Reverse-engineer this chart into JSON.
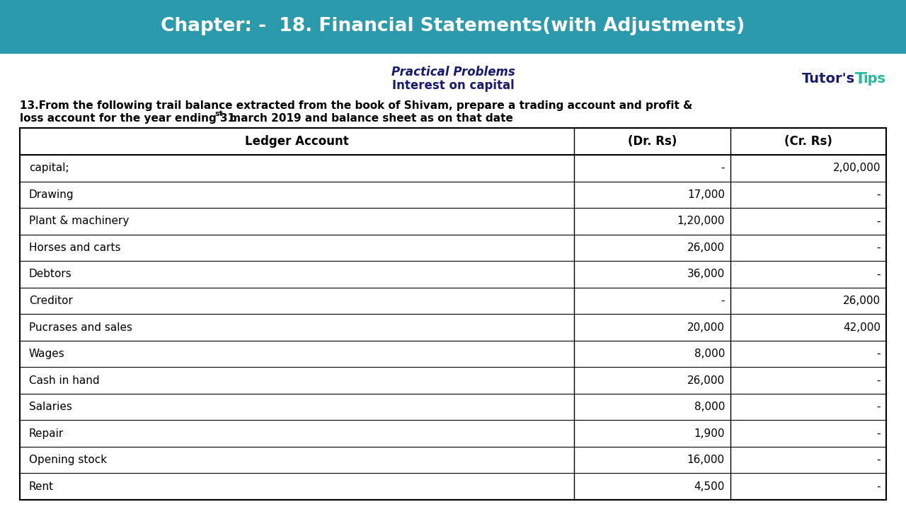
{
  "title": "Chapter: -  18. Financial Statements(with Adjustments)",
  "title_bg": "#2a9aac",
  "title_color": "#ffffff",
  "subtitle1": "Practical Problems",
  "subtitle2": "Interest on capital",
  "col_headers": [
    "Ledger Account",
    "(Dr. Rs)",
    "(Cr. Rs)"
  ],
  "rows": [
    [
      "capital;",
      "-",
      "2,00,000"
    ],
    [
      "Drawing",
      "17,000",
      "-"
    ],
    [
      "Plant & machinery",
      "1,20,000",
      "-"
    ],
    [
      "Horses and carts",
      "26,000",
      "-"
    ],
    [
      "Debtors",
      "36,000",
      "-"
    ],
    [
      "Creditor",
      "-",
      "26,000"
    ],
    [
      "Pucrases and sales",
      "20,000",
      "42,000"
    ],
    [
      "Wages",
      "8,000",
      "-"
    ],
    [
      "Cash in hand",
      "26,000",
      "-"
    ],
    [
      "Salaries",
      "8,000",
      "-"
    ],
    [
      "Repair",
      "1,900",
      "-"
    ],
    [
      "Opening stock",
      "16,000",
      "-"
    ],
    [
      "Rent",
      "4,500",
      "-"
    ]
  ],
  "bg_color": "#ffffff",
  "text_color": "#000000",
  "tutor_color1": "#1a1a6e",
  "tutor_color2": "#2ab89a",
  "q_line1": "13.From the following trail balance extracted from the book of Shivam, prepare a trading account and profit &",
  "q_line2a": "loss account for the year ending 31",
  "q_line2_super": "st",
  "q_line2b": " march 2019 and balance sheet as on that date"
}
